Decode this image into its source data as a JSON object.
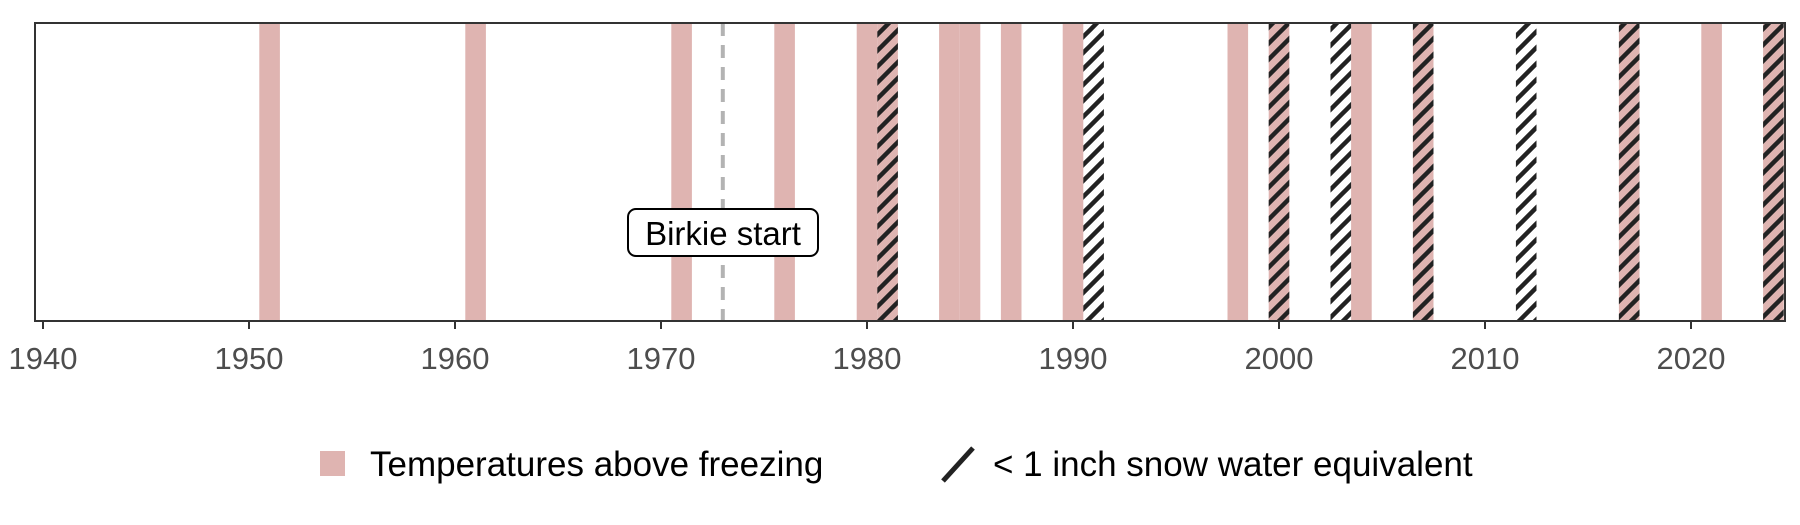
{
  "chart_data": {
    "type": "timeline",
    "xlim": [
      1939.5,
      2024.5
    ],
    "x_ticks": [
      1940,
      1950,
      1960,
      1970,
      1980,
      1990,
      2000,
      2010,
      2020
    ],
    "grid": false,
    "series": [
      {
        "name": "Temperatures above freezing",
        "kind": "fill",
        "color": "#dfb4b1",
        "years": [
          1951,
          1961,
          1971,
          1976,
          1980,
          1981,
          1984,
          1985,
          1987,
          1990,
          1998,
          2000,
          2004,
          2007,
          2017,
          2021,
          2024
        ]
      },
      {
        "name": "< 1 inch snow water equivalent",
        "kind": "hatch",
        "color": "#222222",
        "years": [
          1981,
          1991,
          2000,
          2003,
          2007,
          2012,
          2017,
          2024
        ]
      }
    ],
    "annotations": [
      {
        "x": 1973,
        "label": "Birkie start",
        "line_color": "#b3b3b3",
        "line_style": "dashed"
      }
    ],
    "legend": {
      "position": "bottom"
    }
  }
}
